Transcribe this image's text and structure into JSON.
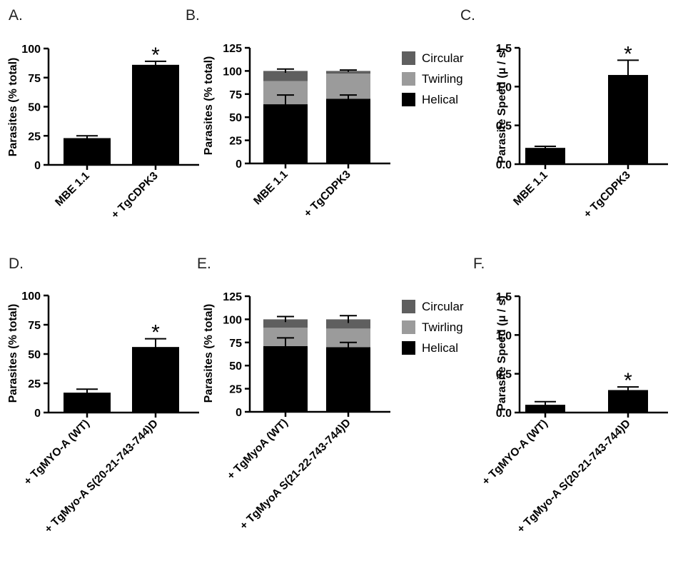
{
  "chart_data": [
    {
      "panel": "A.",
      "type": "bar",
      "ylabel": "Parasites (% total)",
      "ylim": [
        0,
        100
      ],
      "yticks": [
        "0",
        "25",
        "50",
        "75",
        "100"
      ],
      "categories": [
        "MBE 1.1",
        "+ TgCDPK3"
      ],
      "values": [
        23,
        86
      ],
      "errors": [
        2,
        3
      ],
      "significance": [
        "",
        "*"
      ]
    },
    {
      "panel": "B.",
      "type": "bar",
      "stacked": true,
      "ylabel": "Parasites (% total)",
      "ylim": [
        0,
        125
      ],
      "yticks": [
        "0",
        "25",
        "50",
        "75",
        "100",
        "125"
      ],
      "categories": [
        "MBE 1.1",
        "+ TgCDPK3"
      ],
      "series": [
        {
          "name": "Helical",
          "values": [
            64,
            70
          ],
          "errors": [
            10,
            4
          ],
          "color": "#000000"
        },
        {
          "name": "Twirling",
          "values": [
            25,
            27
          ],
          "errors": [
            0,
            0
          ],
          "color": "#9b9b9b"
        },
        {
          "name": "Circular",
          "values": [
            11,
            3
          ],
          "errors": [
            2,
            1
          ],
          "color": "#5f5f5f"
        }
      ],
      "legend": [
        "Circular",
        "Twirling",
        "Helical"
      ],
      "legend_position": "right"
    },
    {
      "panel": "C.",
      "type": "bar",
      "ylabel": "Parasite Speed (μ / s)",
      "ylim": [
        0,
        1.5
      ],
      "yticks": [
        "0.0",
        "0.5",
        "1.0",
        "1.5"
      ],
      "categories": [
        "MBE 1.1",
        "+ TgCDPK3"
      ],
      "values": [
        0.21,
        1.15
      ],
      "errors": [
        0.02,
        0.19
      ],
      "significance": [
        "",
        "*"
      ]
    },
    {
      "panel": "D.",
      "type": "bar",
      "ylabel": "Parasites (% total)",
      "ylim": [
        0,
        100
      ],
      "yticks": [
        "0",
        "25",
        "50",
        "75",
        "100"
      ],
      "categories": [
        "+ TgMYO-A (WT)",
        "+ TgMyo-A S(20-21-743-744)D"
      ],
      "values": [
        17,
        56
      ],
      "errors": [
        3,
        7
      ],
      "significance": [
        "",
        "*"
      ]
    },
    {
      "panel": "E.",
      "type": "bar",
      "stacked": true,
      "ylabel": "Parasites (% total)",
      "ylim": [
        0,
        125
      ],
      "yticks": [
        "0",
        "25",
        "50",
        "75",
        "100",
        "125"
      ],
      "categories": [
        "+ TgMyoA (WT)",
        "+ TgMyoA S(21-22-743-744)D"
      ],
      "series": [
        {
          "name": "Helical",
          "values": [
            71,
            70
          ],
          "errors": [
            9,
            5
          ],
          "color": "#000000"
        },
        {
          "name": "Twirling",
          "values": [
            20,
            20
          ],
          "errors": [
            0,
            0
          ],
          "color": "#9b9b9b"
        },
        {
          "name": "Circular",
          "values": [
            9,
            10
          ],
          "errors": [
            3,
            4
          ],
          "color": "#5f5f5f"
        }
      ],
      "legend": [
        "Circular",
        "Twirling",
        "Helical"
      ],
      "legend_position": "right"
    },
    {
      "panel": "F.",
      "type": "bar",
      "ylabel": "Parasite Speed (μ / s)",
      "ylim": [
        0,
        1.5
      ],
      "yticks": [
        "0.0",
        "0.5",
        "1.0",
        "1.5"
      ],
      "categories": [
        "+ TgMYO-A (WT)",
        "+ TgMyo-A S(20-21-743-744)D"
      ],
      "values": [
        0.1,
        0.29
      ],
      "errors": [
        0.04,
        0.04
      ],
      "significance": [
        "",
        "*"
      ]
    }
  ]
}
